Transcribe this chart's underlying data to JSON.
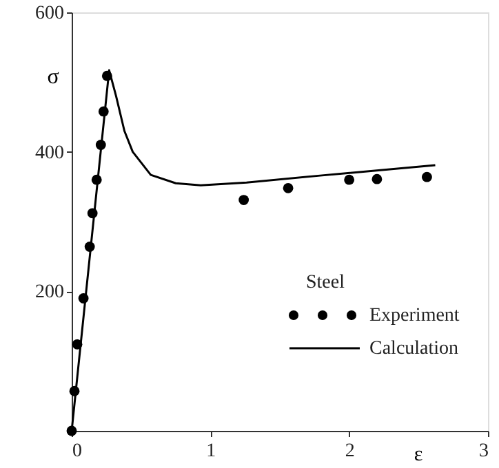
{
  "chart_data": {
    "type": "scatter",
    "xlabel": "ε",
    "ylabel": "σ",
    "legend_title": "Steel",
    "xlim": [
      0,
      3
    ],
    "ylim": [
      0,
      600
    ],
    "xticks": [
      0,
      1,
      2,
      3
    ],
    "yticks": [
      200,
      400,
      600
    ],
    "grid": false,
    "legend": "bottom right",
    "series": [
      {
        "name": "Experiment",
        "marker": "circle",
        "color": "#000000",
        "x": [
          0,
          0.02,
          0.04,
          0.085,
          0.13,
          0.15,
          0.18,
          0.21,
          0.23,
          0.255,
          1.24,
          1.56,
          2.0,
          2.2,
          2.56
        ],
        "values": [
          0,
          57,
          124,
          190,
          264,
          312,
          360,
          410,
          458,
          509,
          331,
          348,
          360,
          361,
          364
        ]
      },
      {
        "name": "Calculation",
        "type": "line",
        "marker": "none",
        "line_style": "solid",
        "color": "#000000",
        "x": [
          0,
          0.27,
          0.32,
          0.38,
          0.44,
          0.57,
          0.75,
          0.93,
          1.26,
          1.79,
          2.62
        ],
        "values": [
          0,
          517,
          480,
          430,
          400,
          367,
          355,
          352,
          356,
          366,
          381
        ]
      }
    ]
  }
}
